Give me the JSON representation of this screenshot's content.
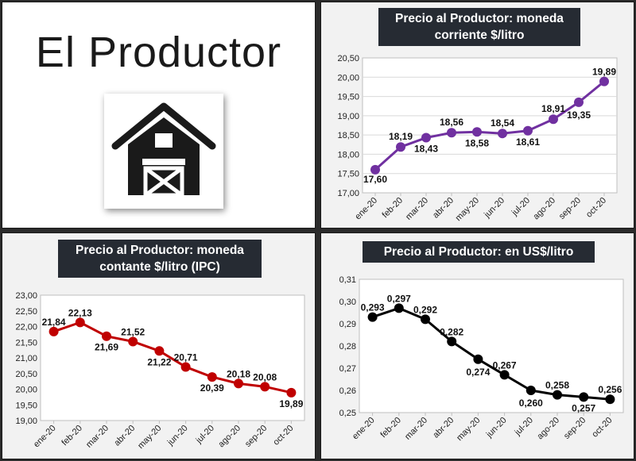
{
  "logo": {
    "text": "El Productor",
    "icon": "barn-icon"
  },
  "chart_data": [
    {
      "type": "line",
      "title": [
        "Precio al Productor: moneda",
        "corriente $/litro"
      ],
      "categories": [
        "ene-20",
        "feb-20",
        "mar-20",
        "abr-20",
        "may-20",
        "jun-20",
        "jul-20",
        "ago-20",
        "sep-20",
        "oct-20"
      ],
      "values": [
        17.6,
        18.19,
        18.43,
        18.56,
        18.58,
        18.54,
        18.61,
        18.91,
        19.35,
        19.89
      ],
      "labels": [
        "17,60",
        "18,19",
        "18,43",
        "18,56",
        "18,58",
        "18,54",
        "18,61",
        "18,91",
        "19,35",
        "19,89"
      ],
      "ylim": [
        17.0,
        20.5
      ],
      "yticks": [
        "17,00",
        "17,50",
        "18,00",
        "18,50",
        "19,00",
        "19,50",
        "20,00",
        "20,50"
      ],
      "color": "#7030a0",
      "grid": true
    },
    {
      "type": "line",
      "title": [
        "Precio al Productor: moneda",
        "contante $/litro (IPC)"
      ],
      "categories": [
        "ene-20",
        "feb-20",
        "mar-20",
        "abr-20",
        "may-20",
        "jun-20",
        "jul-20",
        "ago-20",
        "sep-20",
        "oct-20"
      ],
      "values": [
        21.84,
        22.13,
        21.69,
        21.52,
        21.22,
        20.71,
        20.39,
        20.18,
        20.08,
        19.89
      ],
      "labels": [
        "21,84",
        "22,13",
        "21,69",
        "21,52",
        "21,22",
        "20,71",
        "20,39",
        "20,18",
        "20,08",
        "19,89"
      ],
      "ylim": [
        19.0,
        23.0
      ],
      "yticks": [
        "19,00",
        "19,50",
        "20,00",
        "20,50",
        "21,00",
        "21,50",
        "22,00",
        "22,50",
        "23,00"
      ],
      "color": "#c00000",
      "grid": false
    },
    {
      "type": "line",
      "title": [
        "Precio al Productor: en US$/litro"
      ],
      "categories": [
        "ene-20",
        "feb-20",
        "mar-20",
        "abr-20",
        "may-20",
        "jun-20",
        "jul-20",
        "ago-20",
        "sep-20",
        "oct-20"
      ],
      "values": [
        0.293,
        0.297,
        0.292,
        0.282,
        0.274,
        0.267,
        0.26,
        0.258,
        0.257,
        0.256
      ],
      "labels": [
        "0,293",
        "0,297",
        "0,292",
        "0,282",
        "0,274",
        "0,267",
        "0,260",
        "0,258",
        "0,257",
        "0,256"
      ],
      "ylim": [
        0.25,
        0.31
      ],
      "yticks": [
        "0,25",
        "0,26",
        "0,27",
        "0,28",
        "0,29",
        "0,30",
        "0,31"
      ],
      "color": "#000000",
      "grid": false
    }
  ]
}
